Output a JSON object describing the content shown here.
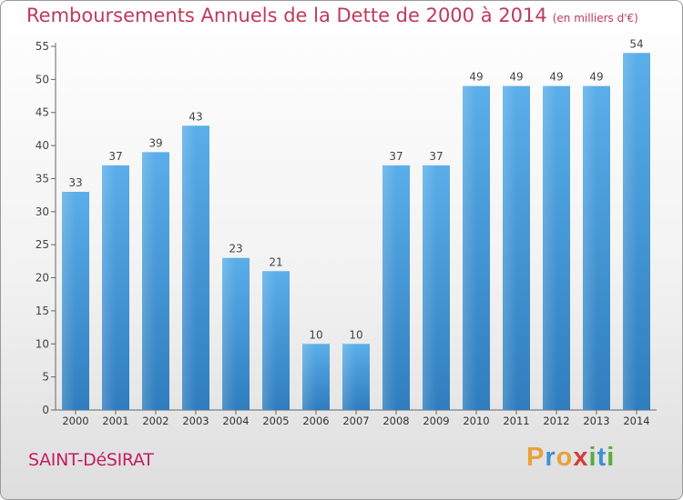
{
  "chart_data": {
    "type": "bar",
    "title": "Remboursements Annuels de la Dette de 2000 à 2014",
    "subtitle": "(en milliers d'€)",
    "categories": [
      "2000",
      "2001",
      "2002",
      "2003",
      "2004",
      "2005",
      "2006",
      "2007",
      "2008",
      "2009",
      "2010",
      "2011",
      "2012",
      "2013",
      "2014"
    ],
    "values": [
      33,
      37,
      39,
      43,
      23,
      21,
      10,
      10,
      37,
      37,
      49,
      49,
      49,
      49,
      54
    ],
    "ylim": [
      0,
      55
    ],
    "yticks": [
      0,
      5,
      10,
      15,
      20,
      25,
      30,
      35,
      40,
      45,
      50,
      55
    ],
    "grid": false,
    "legend": "none",
    "xlabel": "",
    "ylabel": "",
    "bar_color": "#3d95d8"
  },
  "footer": {
    "commune": "SAINT-DéSIRAT",
    "logo": [
      "P",
      "r",
      "o",
      "x",
      "i",
      "t",
      "i"
    ],
    "logo_colors": [
      "#e8a13c",
      "#3f8fd6",
      "#e8a13c",
      "#d43d3d",
      "#5aaa3c",
      "#3f8fd6",
      "#5aaa3c"
    ]
  }
}
